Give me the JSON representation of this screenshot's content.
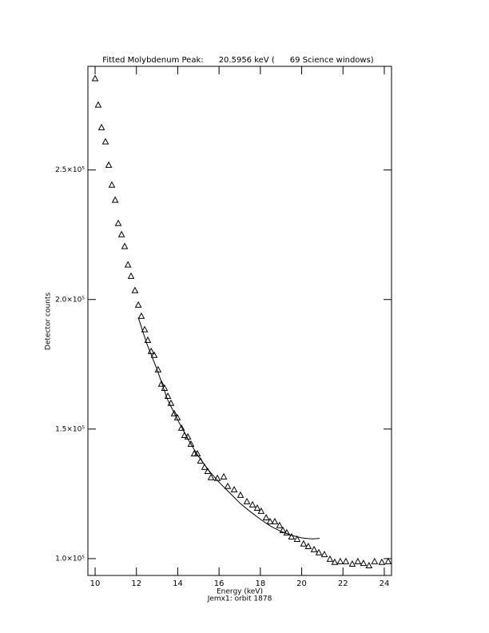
{
  "chart_data": {
    "type": "scatter",
    "title": "Fitted Molybdenum Peak:      20.5956 keV (      69 Science windows)",
    "x_label": "Energy (keV)",
    "subtitle": "Jemx1: orbit 1878",
    "y_label": "Detector counts",
    "xlim": [
      9.65,
      24.35
    ],
    "ylim": [
      93500,
      290000
    ],
    "xticks": [
      10,
      12,
      14,
      16,
      18,
      20,
      22,
      24
    ],
    "yticks": [
      {
        "value": 100000,
        "label": "1.0×10⁵"
      },
      {
        "value": 150000,
        "label": "1.5×10⁵"
      },
      {
        "value": 200000,
        "label": "2.0×10⁵"
      },
      {
        "value": 250000,
        "label": "2.5×10⁵"
      }
    ],
    "color": "#000000",
    "series": [
      {
        "marker": "triangle",
        "x": [
          10.0,
          10.15,
          10.31,
          10.5,
          10.66,
          10.81,
          10.97,
          11.12,
          11.28,
          11.43,
          11.59,
          11.74,
          11.93,
          12.09,
          12.24,
          12.4,
          12.55,
          12.71,
          12.86,
          13.05,
          13.21,
          13.36,
          13.52,
          13.67,
          13.83,
          13.98,
          14.18,
          14.33,
          14.49,
          14.64,
          14.8,
          14.95,
          15.1,
          15.3,
          15.45,
          15.61,
          15.92,
          16.23,
          16.42,
          16.73,
          17.04,
          17.35,
          17.62,
          17.85,
          18.04,
          18.28,
          18.47,
          18.7,
          18.93,
          19.09,
          19.28,
          19.51,
          19.78,
          20.09,
          20.32,
          20.6,
          20.83,
          21.1,
          21.37,
          21.6,
          21.87,
          22.14,
          22.45,
          22.72,
          22.99,
          23.26,
          23.53,
          23.88,
          24.19
        ],
        "values": [
          285200,
          275000,
          266300,
          260800,
          251800,
          244100,
          238300,
          229300,
          225000,
          220400,
          213300,
          208900,
          203400,
          197800,
          193500,
          188300,
          184200,
          179900,
          178400,
          172800,
          167300,
          165700,
          162600,
          159900,
          155900,
          154300,
          150300,
          147500,
          146900,
          144100,
          140400,
          140400,
          137600,
          135200,
          133600,
          131200,
          130900,
          131500,
          127800,
          126500,
          124400,
          121900,
          120700,
          119400,
          118200,
          115700,
          114200,
          114200,
          112700,
          110800,
          109900,
          108300,
          107400,
          105600,
          104600,
          103400,
          102200,
          101500,
          99700,
          98500,
          98800,
          98800,
          97800,
          98800,
          98100,
          97200,
          98800,
          98500,
          98800
        ]
      },
      {
        "marker": "line",
        "x": [
          12.09,
          12.5,
          13.0,
          13.5,
          14.0,
          14.5,
          15.0,
          15.5,
          16.0,
          16.5,
          17.0,
          17.5,
          18.0,
          18.5,
          19.0,
          19.5,
          20.0,
          20.5,
          20.87
        ],
        "values": [
          193000,
          183000,
          173000,
          161500,
          153500,
          146000,
          139500,
          134000,
          129500,
          125500,
          121500,
          118200,
          115200,
          112500,
          110500,
          109000,
          108000,
          107600,
          107800
        ]
      }
    ]
  }
}
